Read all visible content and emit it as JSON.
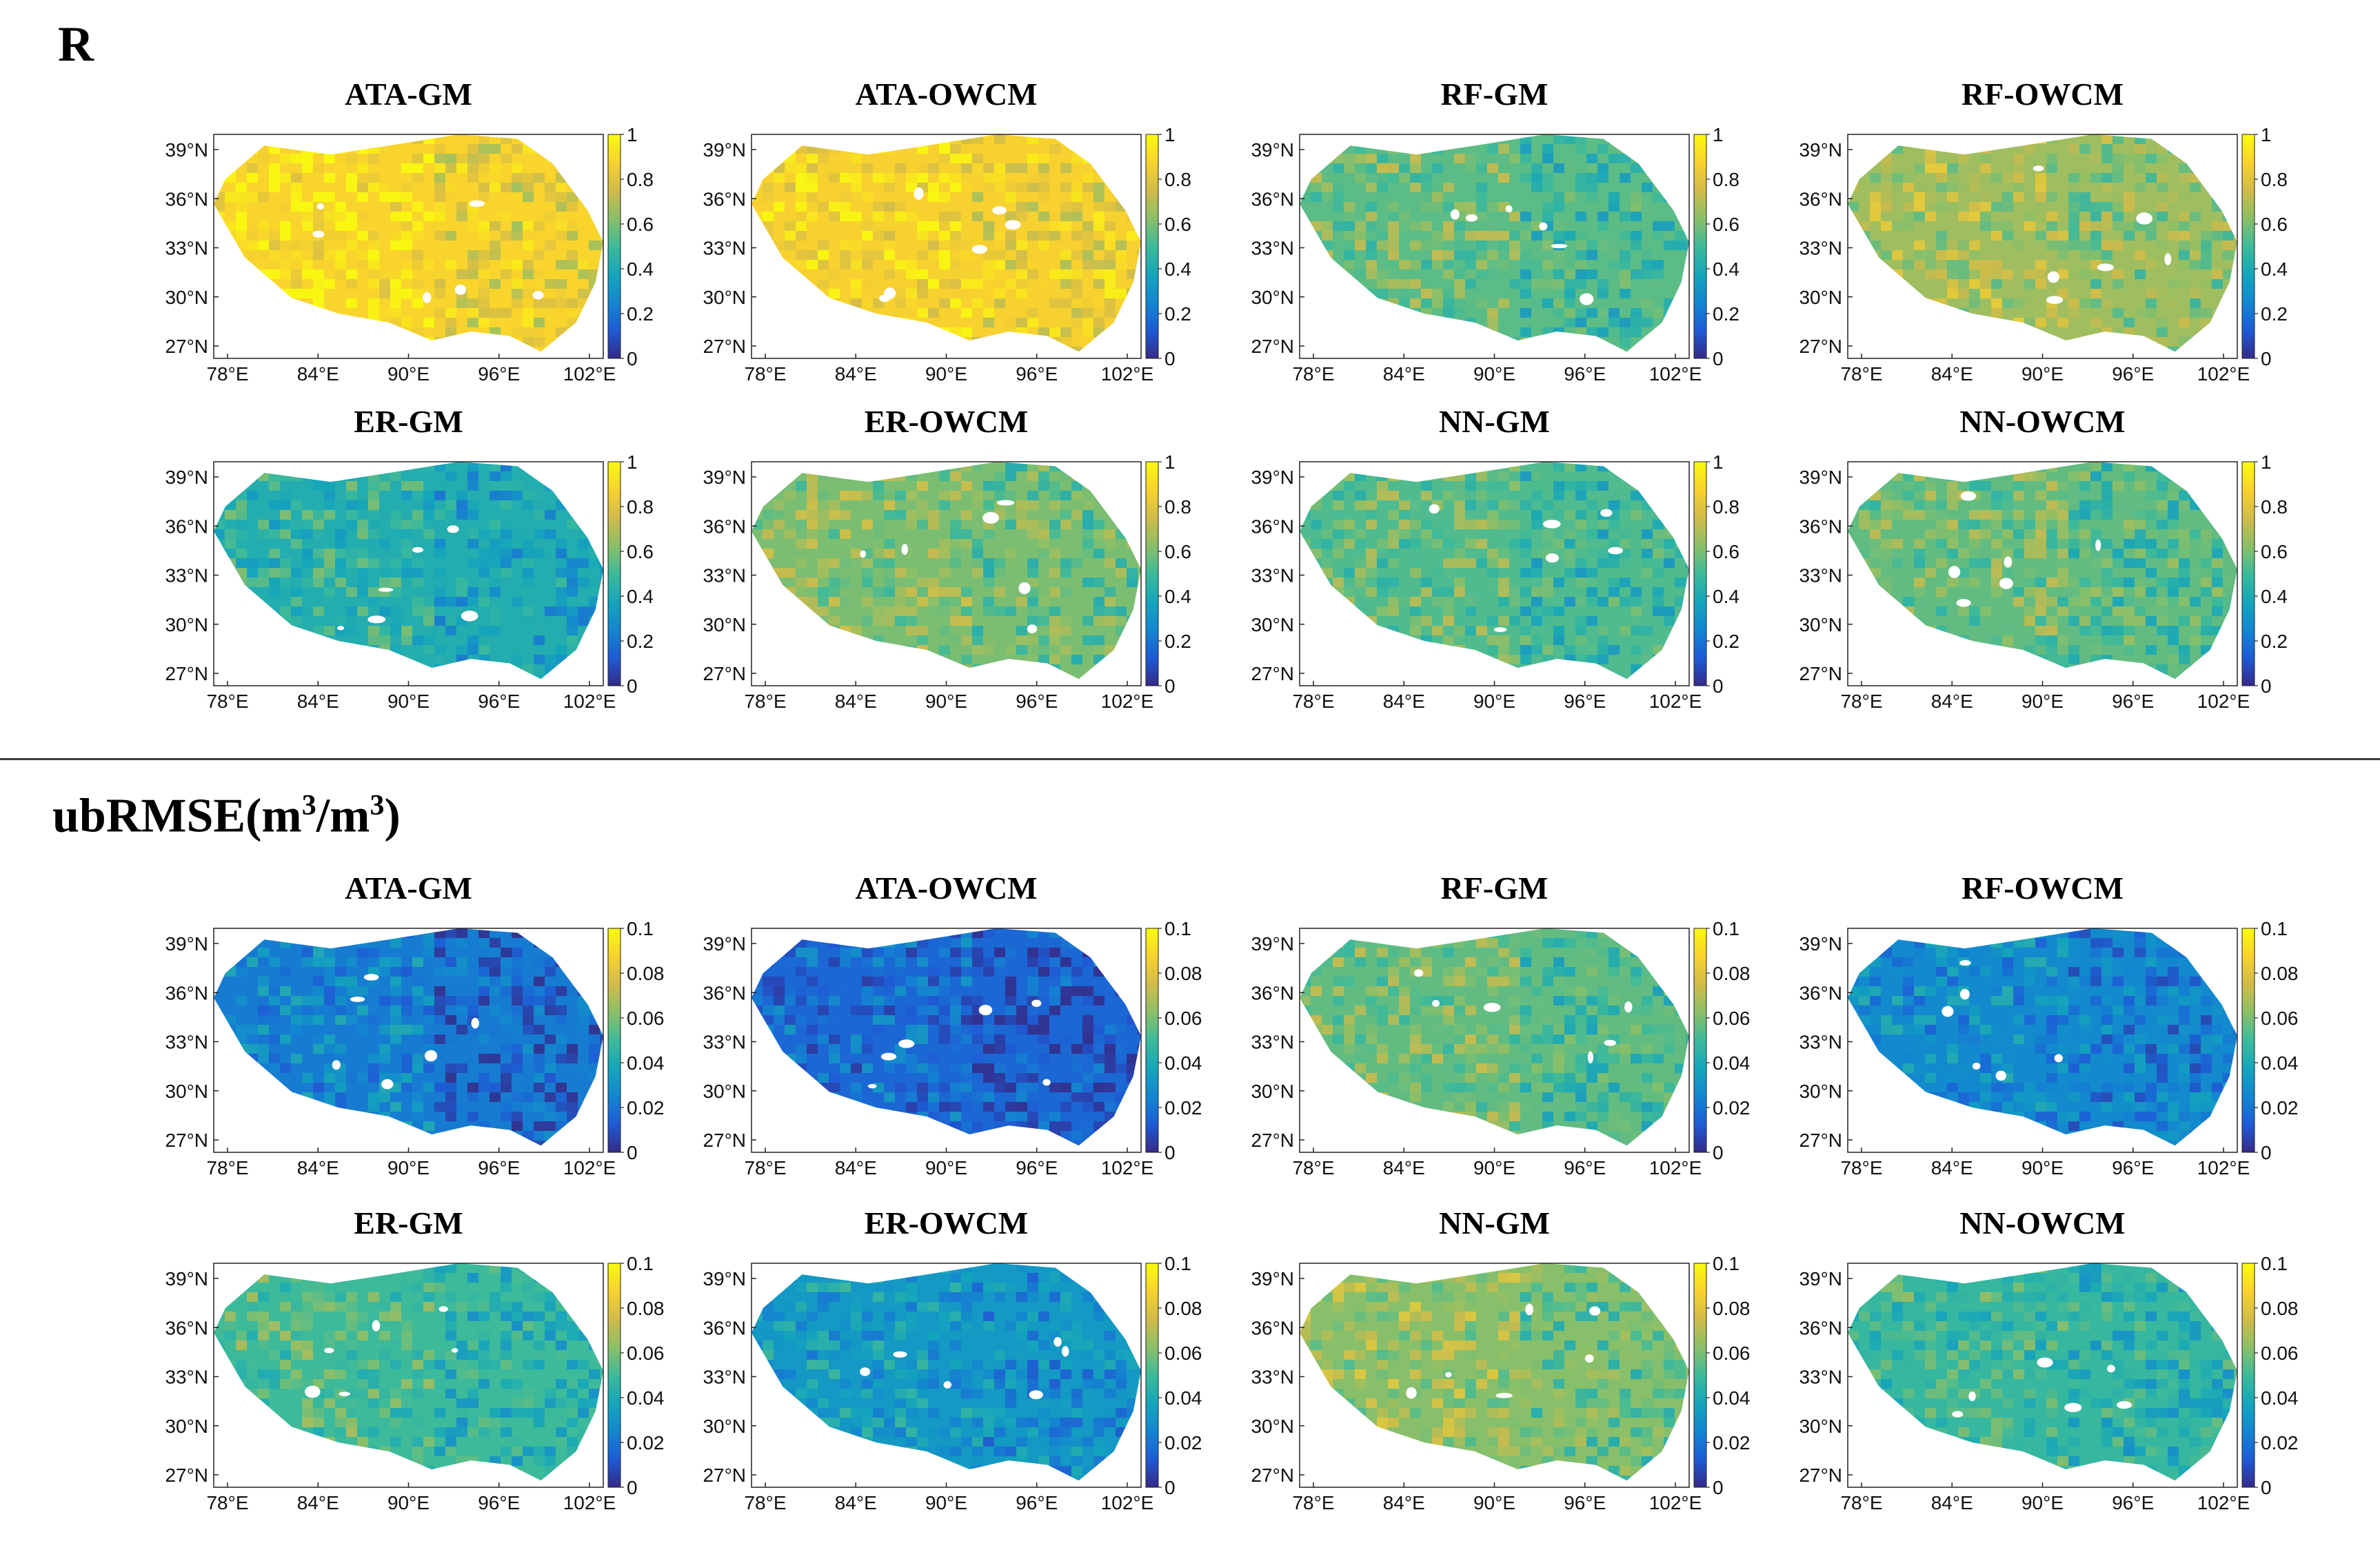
{
  "section_r": {
    "title": "R"
  },
  "section_ub": {
    "title_main": "ubRMSE(m",
    "title_sup1": "3",
    "title_mid": "/m",
    "title_sup2": "3",
    "title_end": ")"
  },
  "axes": {
    "lat_ticks": [
      "39°N",
      "36°N",
      "33°N",
      "30°N",
      "27°N"
    ],
    "lon_ticks": [
      "78°E",
      "84°E",
      "90°E",
      "96°E",
      "102°E"
    ]
  },
  "colorbars": {
    "r_ticks": [
      "1",
      "0.8",
      "0.6",
      "0.4",
      "0.2",
      "0"
    ],
    "ub_ticks": [
      "0.1",
      "0.08",
      "0.06",
      "0.04",
      "0.02",
      "0"
    ]
  },
  "colors": {
    "parula": [
      "#352a87",
      "#1e5bd6",
      "#1386d0",
      "#14a6bb",
      "#3dba9a",
      "#8bbf68",
      "#d1bb4a",
      "#f9d22e",
      "#f9fb0e"
    ]
  },
  "panels_r": [
    {
      "title": "ATA-GM",
      "mean_value": 0.88
    },
    {
      "title": "ATA-OWCM",
      "mean_value": 0.87
    },
    {
      "title": "RF-GM",
      "mean_value": 0.55
    },
    {
      "title": "RF-OWCM",
      "mean_value": 0.66
    },
    {
      "title": "ER-GM",
      "mean_value": 0.42
    },
    {
      "title": "ER-OWCM",
      "mean_value": 0.6
    },
    {
      "title": "NN-GM",
      "mean_value": 0.53
    },
    {
      "title": "NN-OWCM",
      "mean_value": 0.56
    }
  ],
  "panels_ub": [
    {
      "title": "ATA-GM",
      "mean_value": 0.022
    },
    {
      "title": "ATA-OWCM",
      "mean_value": 0.016
    },
    {
      "title": "RF-GM",
      "mean_value": 0.056
    },
    {
      "title": "RF-OWCM",
      "mean_value": 0.026
    },
    {
      "title": "ER-GM",
      "mean_value": 0.05
    },
    {
      "title": "ER-OWCM",
      "mean_value": 0.032
    },
    {
      "title": "NN-GM",
      "mean_value": 0.062
    },
    {
      "title": "NN-OWCM",
      "mean_value": 0.048
    }
  ]
}
